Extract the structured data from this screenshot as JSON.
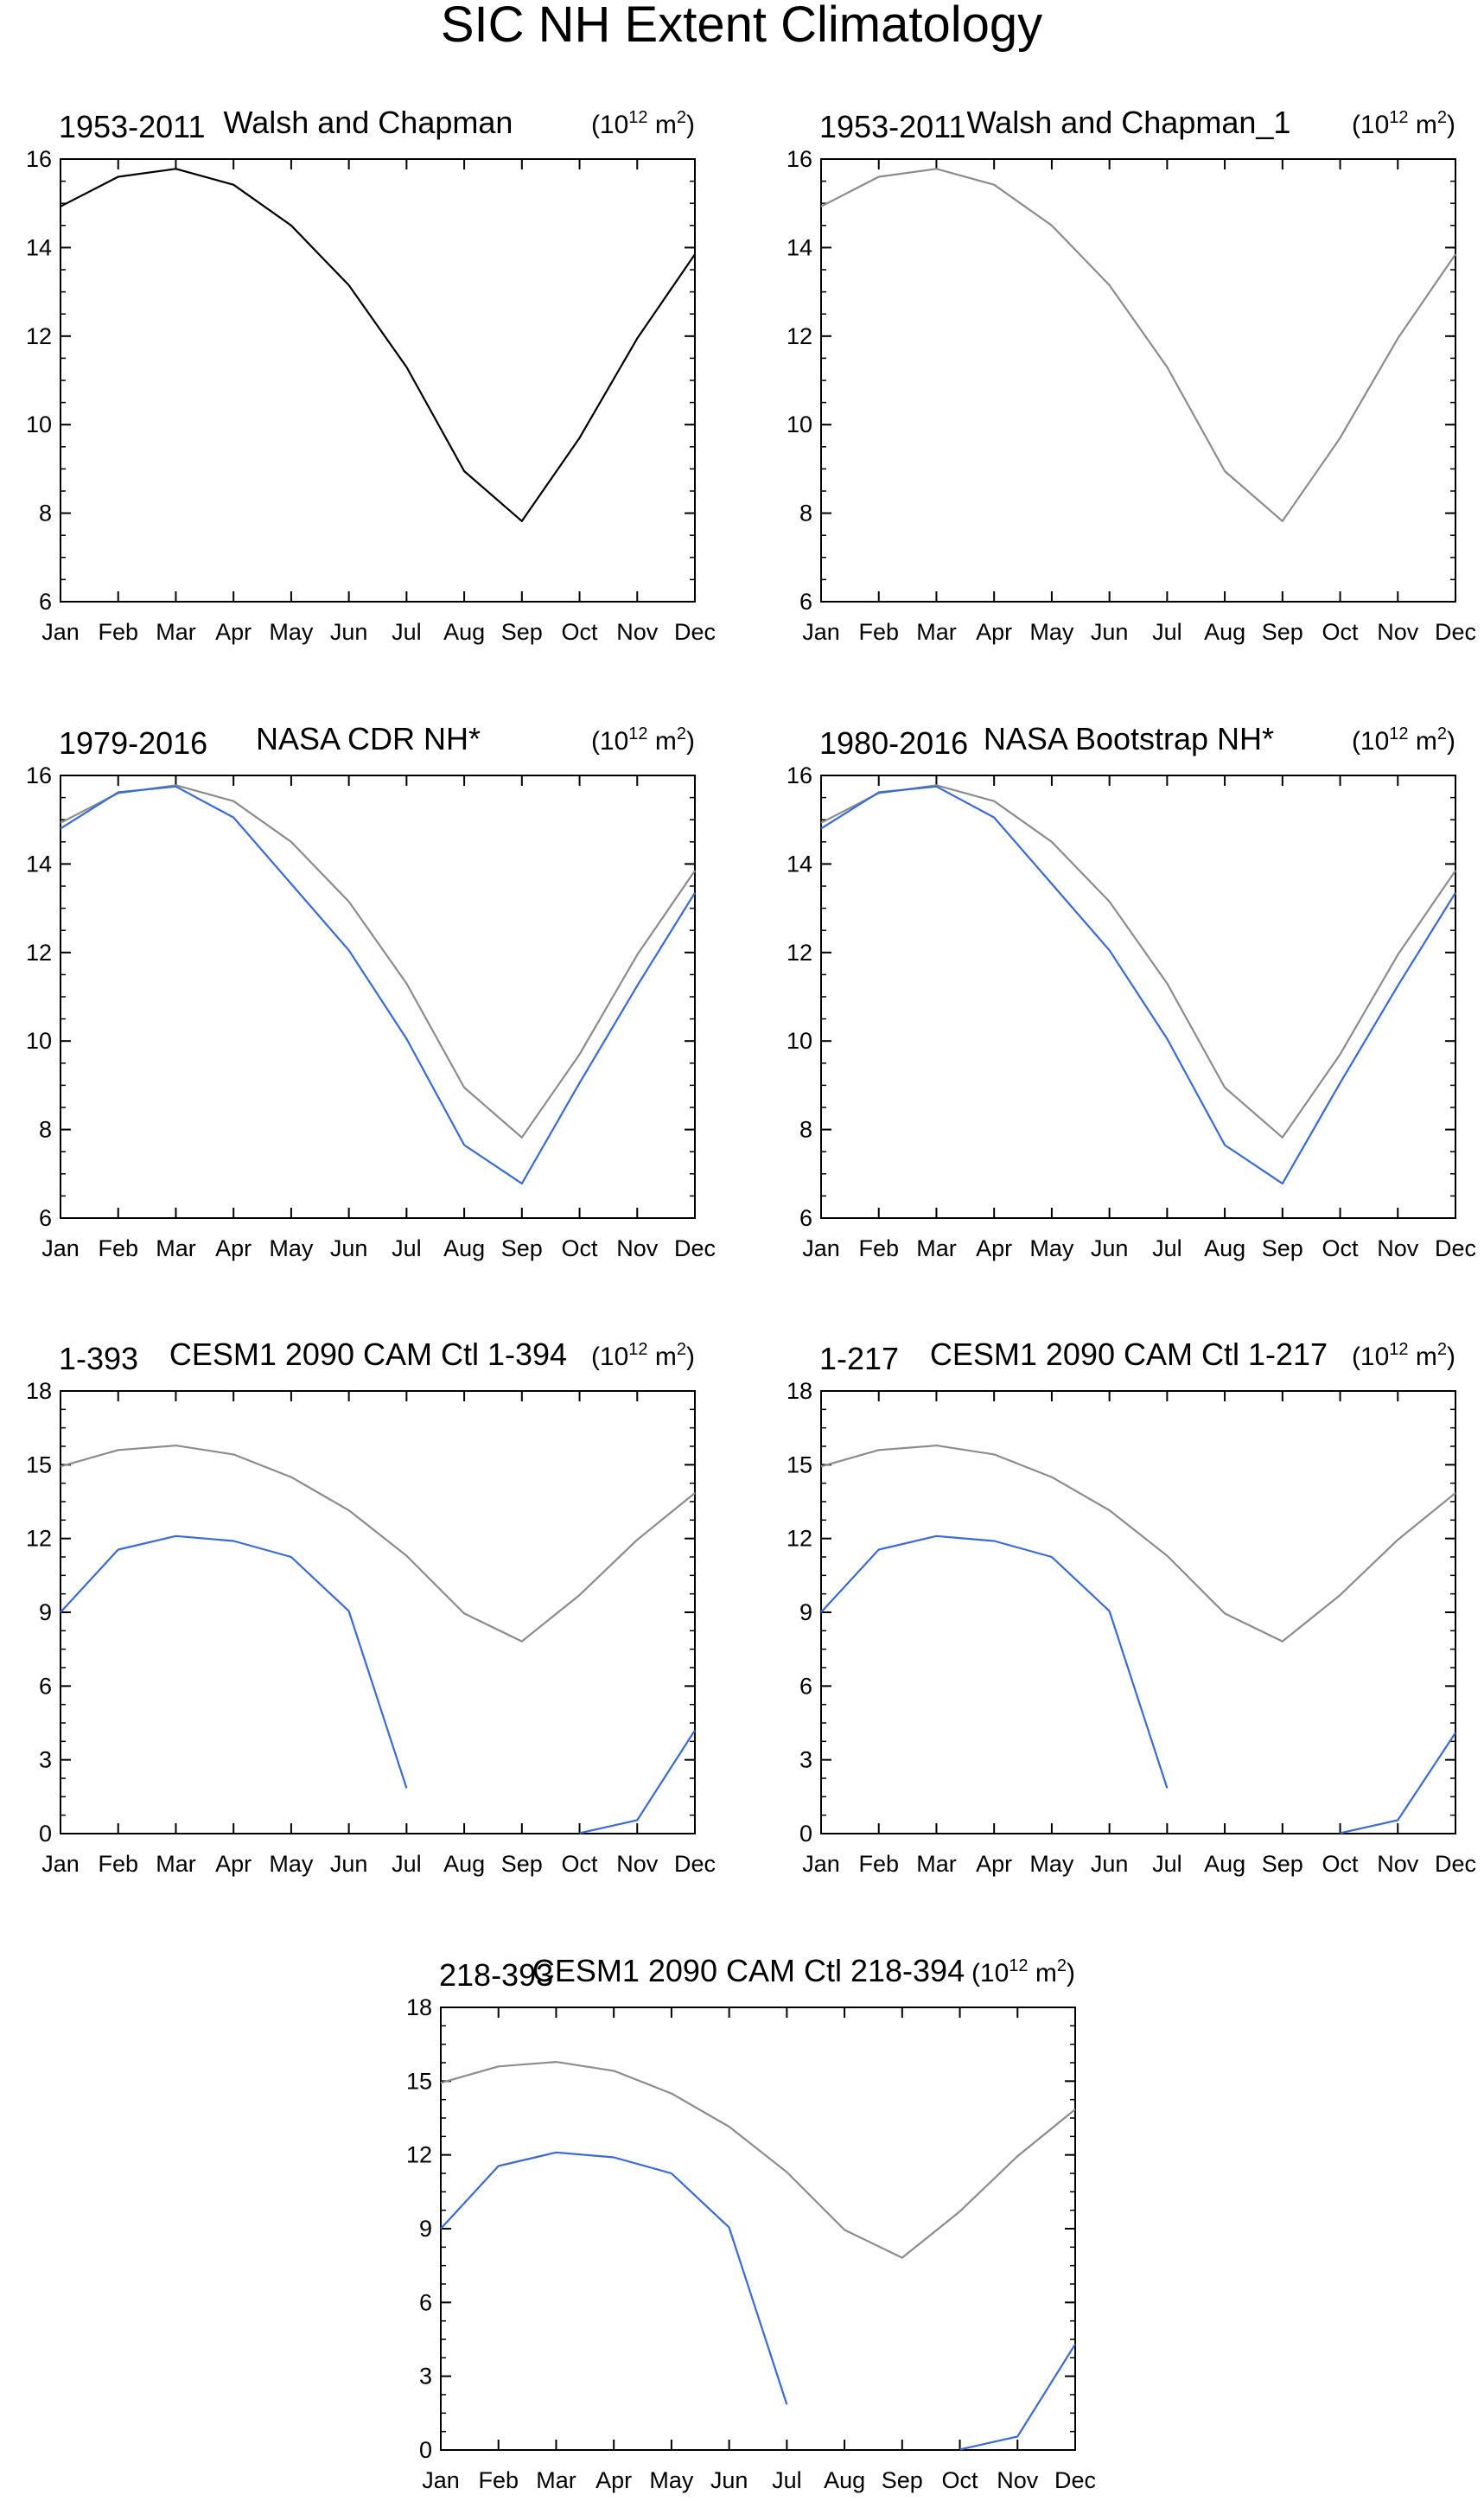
{
  "figure": {
    "title": "SIC NH Extent Climatology",
    "units": {
      "base": "(10",
      "exponent": "12",
      "mid": " m",
      "exponent2": "2",
      "close": ")"
    }
  },
  "months": [
    "Jan",
    "Feb",
    "Mar",
    "Apr",
    "May",
    "Jun",
    "Jul",
    "Aug",
    "Sep",
    "Oct",
    "Nov",
    "Dec"
  ],
  "colors": {
    "reference_black": "#000000",
    "reference_gray": "#8c8c8c",
    "model_blue": "#3a6ad6"
  },
  "chart_data": [
    {
      "type": "line",
      "left_title": "1953-2011",
      "center_title": "Walsh and Chapman",
      "ylim": [
        6,
        16
      ],
      "yticks": [
        6,
        8,
        10,
        12,
        14,
        16
      ],
      "series": [
        {
          "name": "Walsh and Chapman",
          "color": "#000000",
          "values": [
            14.93,
            15.6,
            15.78,
            15.42,
            14.5,
            13.15,
            11.3,
            8.95,
            7.82,
            9.7,
            11.95,
            13.85
          ]
        }
      ]
    },
    {
      "type": "line",
      "left_title": "1953-2011",
      "center_title": "Walsh and Chapman_1",
      "ylim": [
        6,
        16
      ],
      "yticks": [
        6,
        8,
        10,
        12,
        14,
        16
      ],
      "series": [
        {
          "name": "Walsh and Chapman",
          "color": "#8c8c8c",
          "values": [
            14.93,
            15.6,
            15.78,
            15.42,
            14.5,
            13.15,
            11.3,
            8.95,
            7.82,
            9.7,
            11.95,
            13.85
          ]
        }
      ]
    },
    {
      "type": "line",
      "left_title": "1979-2016",
      "center_title": "NASA CDR NH*",
      "ylim": [
        6,
        16
      ],
      "yticks": [
        6,
        8,
        10,
        12,
        14,
        16
      ],
      "series": [
        {
          "name": "Walsh and Chapman",
          "color": "#8c8c8c",
          "values": [
            14.93,
            15.6,
            15.78,
            15.42,
            14.5,
            13.15,
            11.3,
            8.95,
            7.82,
            9.7,
            11.95,
            13.85
          ]
        },
        {
          "name": "NASA CDR NH*",
          "color": "#3a6ad6",
          "values": [
            14.8,
            15.62,
            15.75,
            15.05,
            13.55,
            12.05,
            10.05,
            7.65,
            6.78,
            9.05,
            11.25,
            13.35
          ]
        }
      ]
    },
    {
      "type": "line",
      "left_title": "1980-2016",
      "center_title": "NASA Bootstrap NH*",
      "ylim": [
        6,
        16
      ],
      "yticks": [
        6,
        8,
        10,
        12,
        14,
        16
      ],
      "series": [
        {
          "name": "Walsh and Chapman",
          "color": "#8c8c8c",
          "values": [
            14.93,
            15.6,
            15.78,
            15.42,
            14.5,
            13.15,
            11.3,
            8.95,
            7.82,
            9.7,
            11.95,
            13.85
          ]
        },
        {
          "name": "NASA Bootstrap NH*",
          "color": "#3a6ad6",
          "values": [
            14.8,
            15.62,
            15.75,
            15.05,
            13.55,
            12.05,
            10.05,
            7.65,
            6.78,
            9.05,
            11.25,
            13.35
          ]
        }
      ]
    },
    {
      "type": "line",
      "left_title": "1-393",
      "center_title": "CESM1 2090 CAM Ctl 1-394",
      "ylim": [
        0,
        18
      ],
      "yticks": [
        0,
        3,
        6,
        9,
        12,
        15,
        18
      ],
      "series": [
        {
          "name": "Walsh and Chapman",
          "color": "#8c8c8c",
          "values": [
            14.93,
            15.6,
            15.78,
            15.42,
            14.5,
            13.15,
            11.3,
            8.95,
            7.82,
            9.7,
            11.95,
            13.85
          ]
        },
        {
          "name": "CESM1 2090 CAM Ctl 1-394",
          "color": "#3a6ad6",
          "values": [
            9.0,
            11.55,
            12.1,
            11.9,
            11.25,
            9.05,
            1.85,
            null,
            null,
            0.02,
            0.55,
            4.2
          ]
        }
      ]
    },
    {
      "type": "line",
      "left_title": "1-217",
      "center_title": "CESM1 2090 CAM Ctl 1-217",
      "ylim": [
        0,
        18
      ],
      "yticks": [
        0,
        3,
        6,
        9,
        12,
        15,
        18
      ],
      "series": [
        {
          "name": "Walsh and Chapman",
          "color": "#8c8c8c",
          "values": [
            14.93,
            15.6,
            15.78,
            15.42,
            14.5,
            13.15,
            11.3,
            8.95,
            7.82,
            9.7,
            11.95,
            13.85
          ]
        },
        {
          "name": "CESM1 2090 CAM Ctl 1-217",
          "color": "#3a6ad6",
          "values": [
            9.0,
            11.55,
            12.1,
            11.9,
            11.25,
            9.05,
            1.85,
            null,
            null,
            0.02,
            0.55,
            4.1
          ]
        }
      ]
    },
    {
      "type": "line",
      "left_title": "218-393",
      "center_title": "CESM1 2090 CAM Ctl 218-394",
      "ylim": [
        0,
        18
      ],
      "yticks": [
        0,
        3,
        6,
        9,
        12,
        15,
        18
      ],
      "series": [
        {
          "name": "Walsh and Chapman",
          "color": "#8c8c8c",
          "values": [
            14.93,
            15.6,
            15.78,
            15.42,
            14.5,
            13.15,
            11.3,
            8.95,
            7.82,
            9.7,
            11.95,
            13.85
          ]
        },
        {
          "name": "CESM1 2090 CAM Ctl 218-394",
          "color": "#3a6ad6",
          "values": [
            9.0,
            11.55,
            12.1,
            11.9,
            11.25,
            9.05,
            1.85,
            null,
            null,
            0.02,
            0.55,
            4.3
          ]
        }
      ]
    }
  ]
}
